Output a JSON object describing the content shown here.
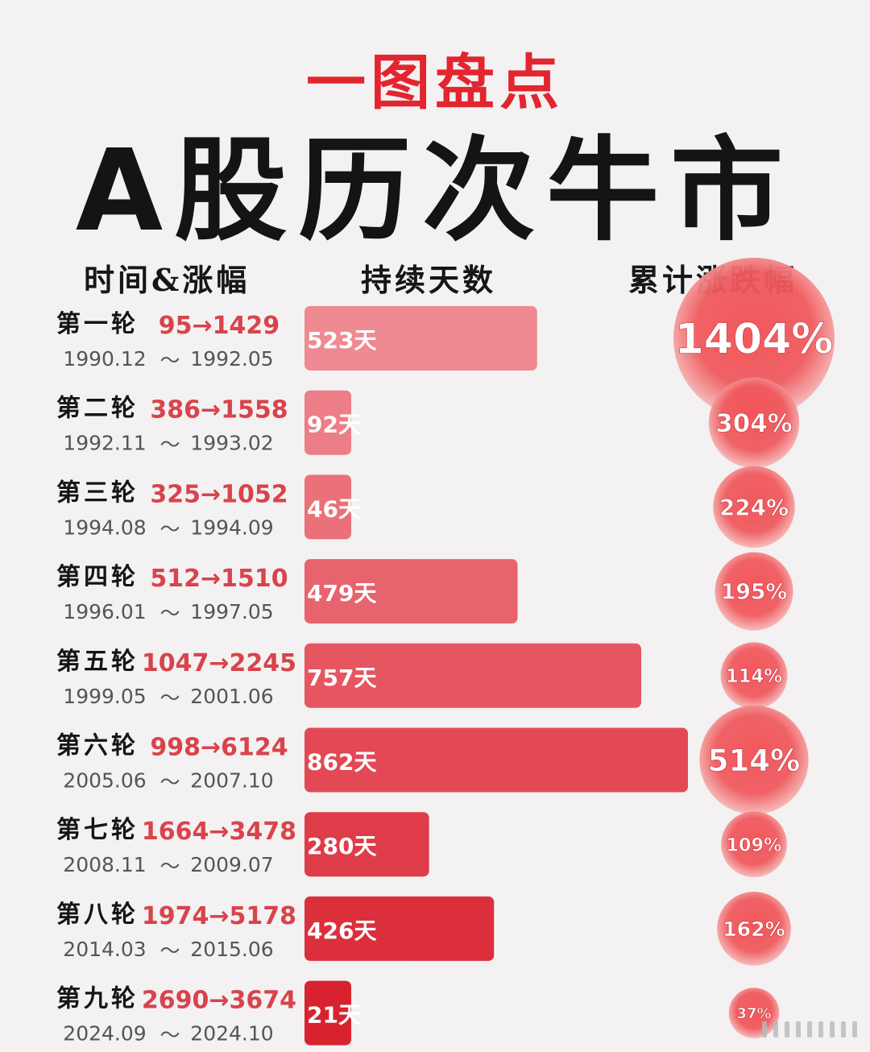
{
  "header": {
    "subtitle": "一图盘点",
    "title": "A股历次牛市",
    "col_time": "时间&涨幅",
    "col_days": "持续天数",
    "col_gain": "累计涨跌幅"
  },
  "chart_data": {
    "type": "bar",
    "title": "A股历次牛市",
    "duration_unit": "天",
    "rounds": [
      {
        "label": "第一轮",
        "start_index": "95",
        "end_index": "1429",
        "start_date": "1990.12",
        "end_date": "1992.05",
        "days": 523,
        "gain": "1404%"
      },
      {
        "label": "第二轮",
        "start_index": "386",
        "end_index": "1558",
        "start_date": "1992.11",
        "end_date": "1993.02",
        "days": 92,
        "gain": "304%"
      },
      {
        "label": "第三轮",
        "start_index": "325",
        "end_index": "1052",
        "start_date": "1994.08",
        "end_date": "1994.09",
        "days": 46,
        "gain": "224%"
      },
      {
        "label": "第四轮",
        "start_index": "512",
        "end_index": "1510",
        "start_date": "1996.01",
        "end_date": "1997.05",
        "days": 479,
        "gain": "195%"
      },
      {
        "label": "第五轮",
        "start_index": "1047",
        "end_index": "2245",
        "start_date": "1999.05",
        "end_date": "2001.06",
        "days": 757,
        "gain": "114%"
      },
      {
        "label": "第六轮",
        "start_index": "998",
        "end_index": "6124",
        "start_date": "2005.06",
        "end_date": "2007.10",
        "days": 862,
        "gain": "514%"
      },
      {
        "label": "第七轮",
        "start_index": "1664",
        "end_index": "3478",
        "start_date": "2008.11",
        "end_date": "2009.07",
        "days": 280,
        "gain": "109%"
      },
      {
        "label": "第八轮",
        "start_index": "1974",
        "end_index": "5178",
        "start_date": "2014.03",
        "end_date": "2015.06",
        "days": 426,
        "gain": "162%"
      },
      {
        "label": "第九轮",
        "start_index": "2690",
        "end_index": "3674",
        "start_date": "2024.09",
        "end_date": "2024.10",
        "days": 21,
        "gain": "37%"
      }
    ]
  }
}
